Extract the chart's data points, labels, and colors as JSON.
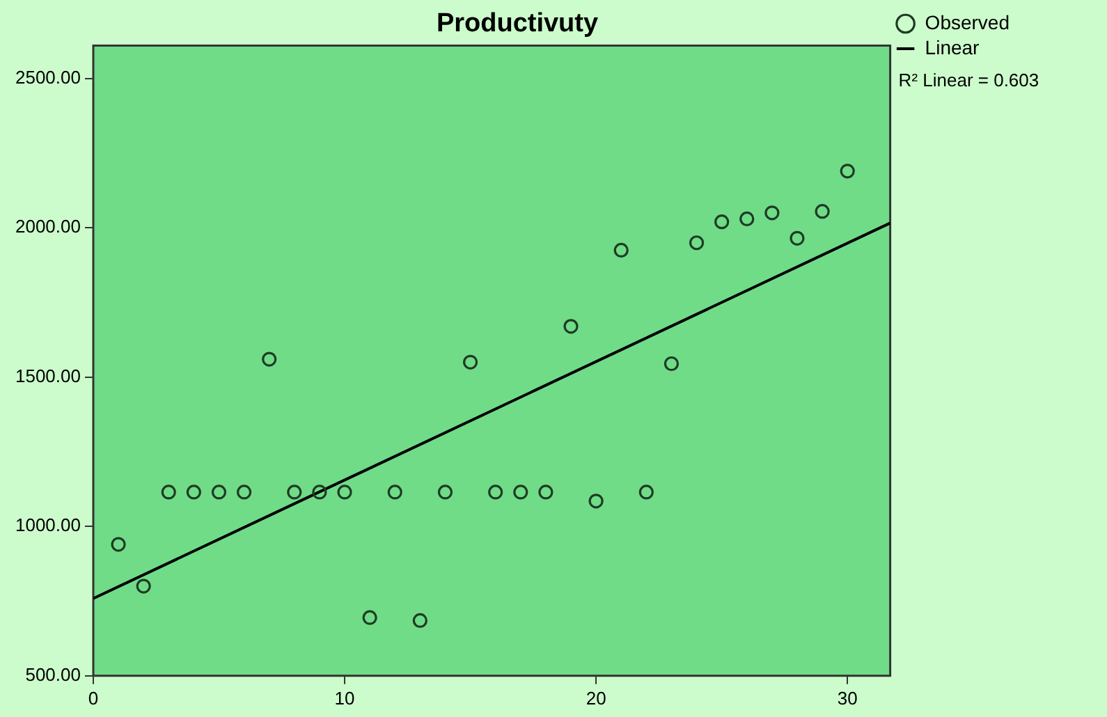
{
  "chart_data": {
    "type": "scatter",
    "title": "Productivuty",
    "xlim": [
      0,
      31.7
    ],
    "xticks": [
      0,
      10,
      20,
      30
    ],
    "ylim": [
      500,
      2610
    ],
    "yticks": [
      {
        "value": 500,
        "label": "500.00"
      },
      {
        "value": 1000,
        "label": "1000.00"
      },
      {
        "value": 1500,
        "label": "1500.00"
      },
      {
        "value": 2000,
        "label": "2000.00"
      },
      {
        "value": 2500,
        "label": "2500.00"
      }
    ],
    "grid": false,
    "legend": "top right",
    "series": [
      {
        "name": "Observed",
        "type": "scatter",
        "marker": "circle",
        "color": "#1e3b24",
        "x": [
          1,
          2,
          3,
          4,
          5,
          6,
          7,
          8,
          9,
          10,
          11,
          12,
          13,
          14,
          15,
          16,
          17,
          18,
          19,
          20,
          21,
          22,
          23,
          24,
          25,
          26,
          27,
          28,
          29,
          30
        ],
        "values": [
          940,
          800,
          1115,
          1115,
          1115,
          1115,
          1560,
          1115,
          1115,
          1115,
          695,
          1115,
          685,
          1115,
          1550,
          1115,
          1115,
          1115,
          1670,
          1085,
          1925,
          1115,
          1545,
          1950,
          2020,
          2030,
          2050,
          1965,
          2055,
          2190
        ]
      },
      {
        "name": "Linear",
        "type": "line",
        "marker": "none",
        "line_style": "solid",
        "color": "#000000",
        "x": [
          0,
          31.7
        ],
        "values": [
          759,
          2016
        ]
      }
    ],
    "annotations": [
      "R² Linear = 0.603"
    ]
  }
}
